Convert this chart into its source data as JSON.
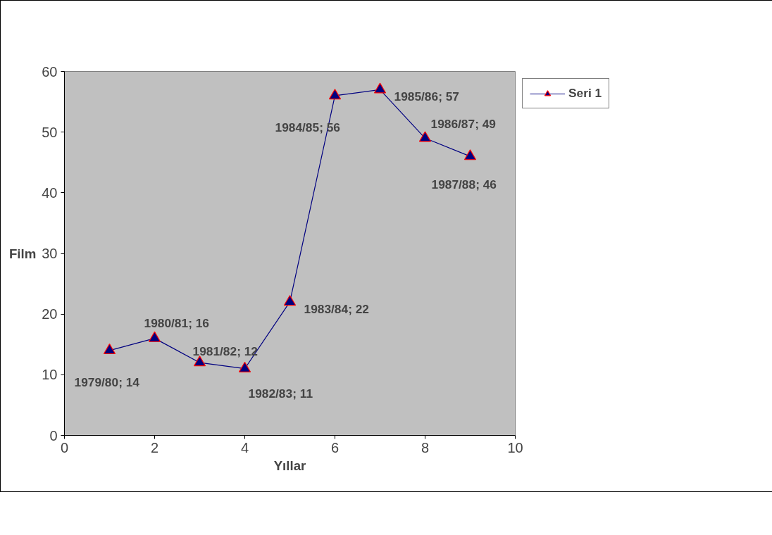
{
  "chart_data": {
    "type": "line",
    "xlabel": "Yıllar",
    "ylabel": "Film",
    "x": [
      1,
      2,
      3,
      4,
      5,
      6,
      7,
      8,
      9
    ],
    "series": [
      {
        "name": "Seri 1",
        "color": "#000080",
        "values": [
          14,
          16,
          12,
          11,
          22,
          56,
          57,
          49,
          46
        ],
        "value_labels": [
          "1979/80; 14",
          "1980/81; 16",
          "1981/82; 12",
          "1982/83; 11",
          "1983/84; 22",
          "1984/85; 56",
          "1985/86; 57",
          "1986/87; 49",
          "1987/88; 46"
        ]
      }
    ],
    "xlim": [
      0,
      10
    ],
    "xticks": [
      0,
      2,
      4,
      6,
      8,
      10
    ],
    "ylim": [
      0,
      60
    ],
    "yticks": [
      0,
      10,
      20,
      30,
      40,
      50,
      60
    ],
    "grid": false,
    "legend": "right",
    "marker": "triangle",
    "line_style": "solid"
  }
}
